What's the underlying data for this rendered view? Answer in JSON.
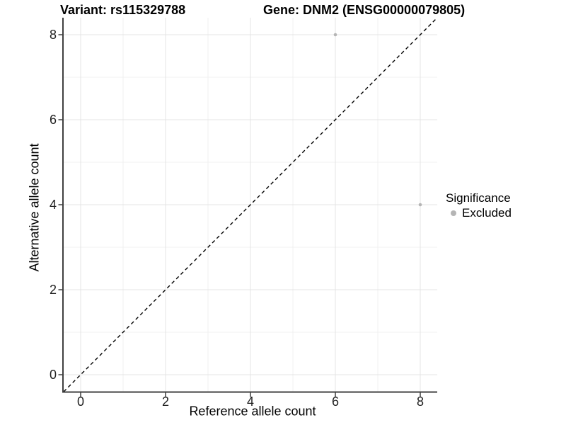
{
  "header": {
    "variant_title": "Variant: rs115329788",
    "gene_title": "Gene: DNM2 (ENSG00000079805)"
  },
  "legend": {
    "title": "Significance",
    "items": [
      {
        "label": "Excluded",
        "color": "#b5b5b5"
      }
    ]
  },
  "colors": {
    "background": "#ffffff",
    "grid_major": "#e4e4e4",
    "grid_minor": "#f1f1f1",
    "axis_line": "#3f3f3f",
    "tick_mark": "#3f3f3f",
    "tick_label": "#1f1f1f",
    "reference_line": "#000000"
  },
  "chart_data": {
    "type": "scatter",
    "title": "Variant: rs115329788 — Gene: DNM2 (ENSG00000079805)",
    "xlabel": "Reference allele count",
    "ylabel": "Alternative allele count",
    "xlim": [
      -0.4,
      8.4
    ],
    "ylim": [
      -0.4,
      8.4
    ],
    "x_ticks": [
      0,
      2,
      4,
      6,
      8
    ],
    "y_ticks": [
      0,
      2,
      4,
      6,
      8
    ],
    "x_minor_ticks": [
      1,
      3,
      5,
      7
    ],
    "y_minor_ticks": [
      1,
      3,
      5,
      7
    ],
    "grid": true,
    "legend_position": "right",
    "legend_title": "Significance",
    "series": [
      {
        "name": "Excluded",
        "color": "#b5b5b5",
        "point_radius": 2.3,
        "points": [
          [
            6,
            8
          ],
          [
            8,
            4
          ]
        ]
      }
    ],
    "reference_line": {
      "type": "identity",
      "from": [
        -0.4,
        -0.4
      ],
      "to": [
        8.4,
        8.4
      ],
      "style": "dashed",
      "color": "#000000"
    }
  }
}
